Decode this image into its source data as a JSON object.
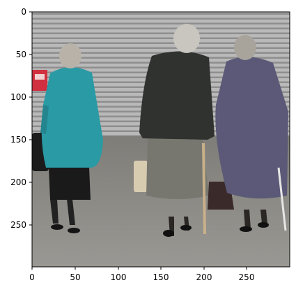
{
  "image": {
    "content": "photo",
    "x_ticks": [
      "0",
      "50",
      "100",
      "150",
      "200",
      "250"
    ],
    "y_ticks": [
      "0",
      "50",
      "100",
      "150",
      "200",
      "250"
    ],
    "x_range": [
      0,
      300
    ],
    "y_range": [
      0,
      300
    ],
    "y_inverted": true
  },
  "colors": {
    "shutter_light": "#b9b9b9",
    "shutter_dark": "#8e8e8e",
    "pavement": "#8d8b85",
    "teal_coat": "#2a9aa5",
    "dark_jacket": "#2f322f",
    "grey_skirt": "#77776f",
    "purple_coat": "#5b5977",
    "hair_grey": "#c9c6c0",
    "red_sign": "#d03040"
  }
}
